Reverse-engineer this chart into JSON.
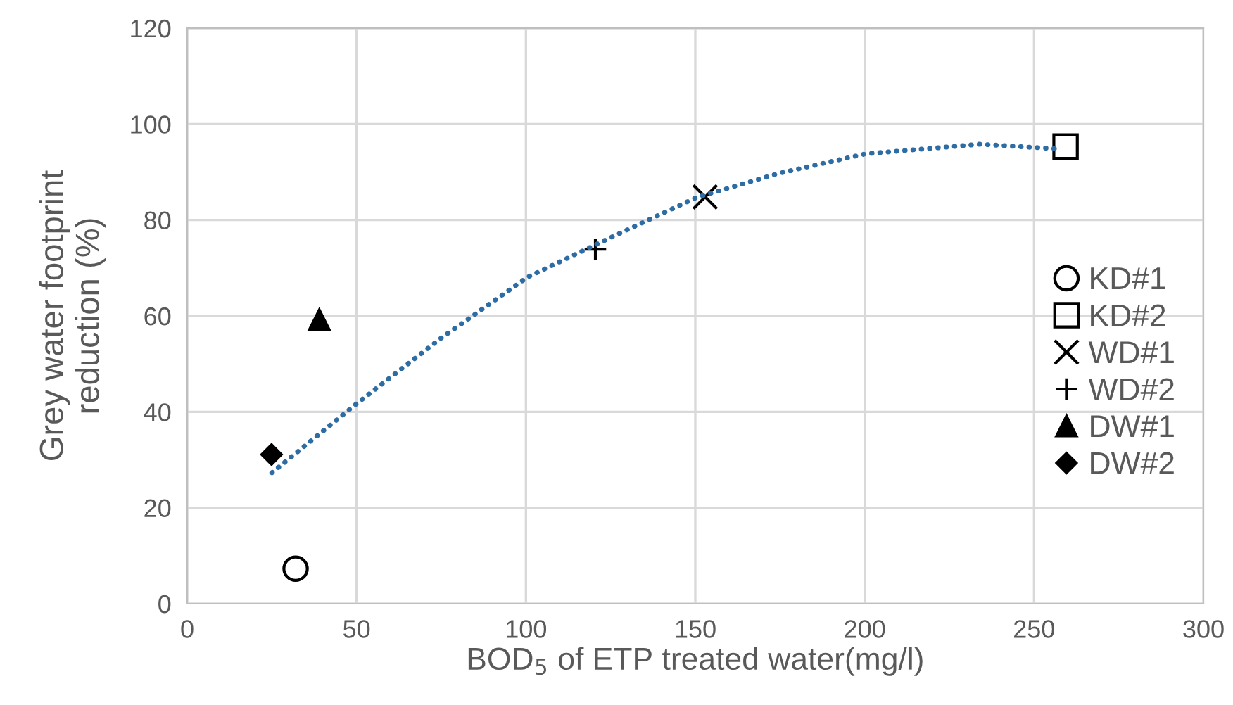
{
  "chart_data": {
    "type": "scatter",
    "xlabel": "BOD$_{5}$ of ETP treated water(mg/l)",
    "ylabel": "Grey water footprint\nreduction (%)",
    "xlim": [
      0,
      300
    ],
    "xticks": [
      0,
      50,
      100,
      150,
      200,
      250,
      300
    ],
    "ylim": [
      0,
      120
    ],
    "yticks": [
      0,
      20,
      40,
      60,
      80,
      100,
      120
    ],
    "grid": true,
    "legend": "right",
    "series": [
      {
        "type": "line",
        "color": "#2e6ca4",
        "line_style": "dotted",
        "x": [
          25,
          50,
          75,
          100.5,
          125.5,
          150.4,
          174.5,
          200.3,
          234,
          257.7
        ],
        "values": [
          27.3,
          41.7,
          55.4,
          68.1,
          76.5,
          84.7,
          89.7,
          93.8,
          95.8,
          94.8
        ]
      },
      {
        "name": "KD#1",
        "color": "#000000",
        "marker": "circle",
        "x": [
          32
        ],
        "values": [
          7.3
        ]
      },
      {
        "name": "KD#2",
        "color": "#000000",
        "marker": "square",
        "x": [
          259.3
        ],
        "values": [
          95.3
        ]
      },
      {
        "name": "WD#1",
        "color": "#000000",
        "marker": "cross",
        "x": [
          152.9
        ],
        "values": [
          84.8
        ]
      },
      {
        "name": "WD#2",
        "color": "#000000",
        "marker": "plus",
        "x": [
          120.5
        ],
        "values": [
          73.9
        ]
      },
      {
        "name": "DW#1",
        "color": "#000000",
        "marker": "triangle",
        "x": [
          39
        ],
        "values": [
          59.2
        ]
      },
      {
        "name": "DW#2",
        "color": "#000000",
        "marker": "diamond",
        "x": [
          24.9
        ],
        "values": [
          31.1
        ]
      }
    ]
  }
}
